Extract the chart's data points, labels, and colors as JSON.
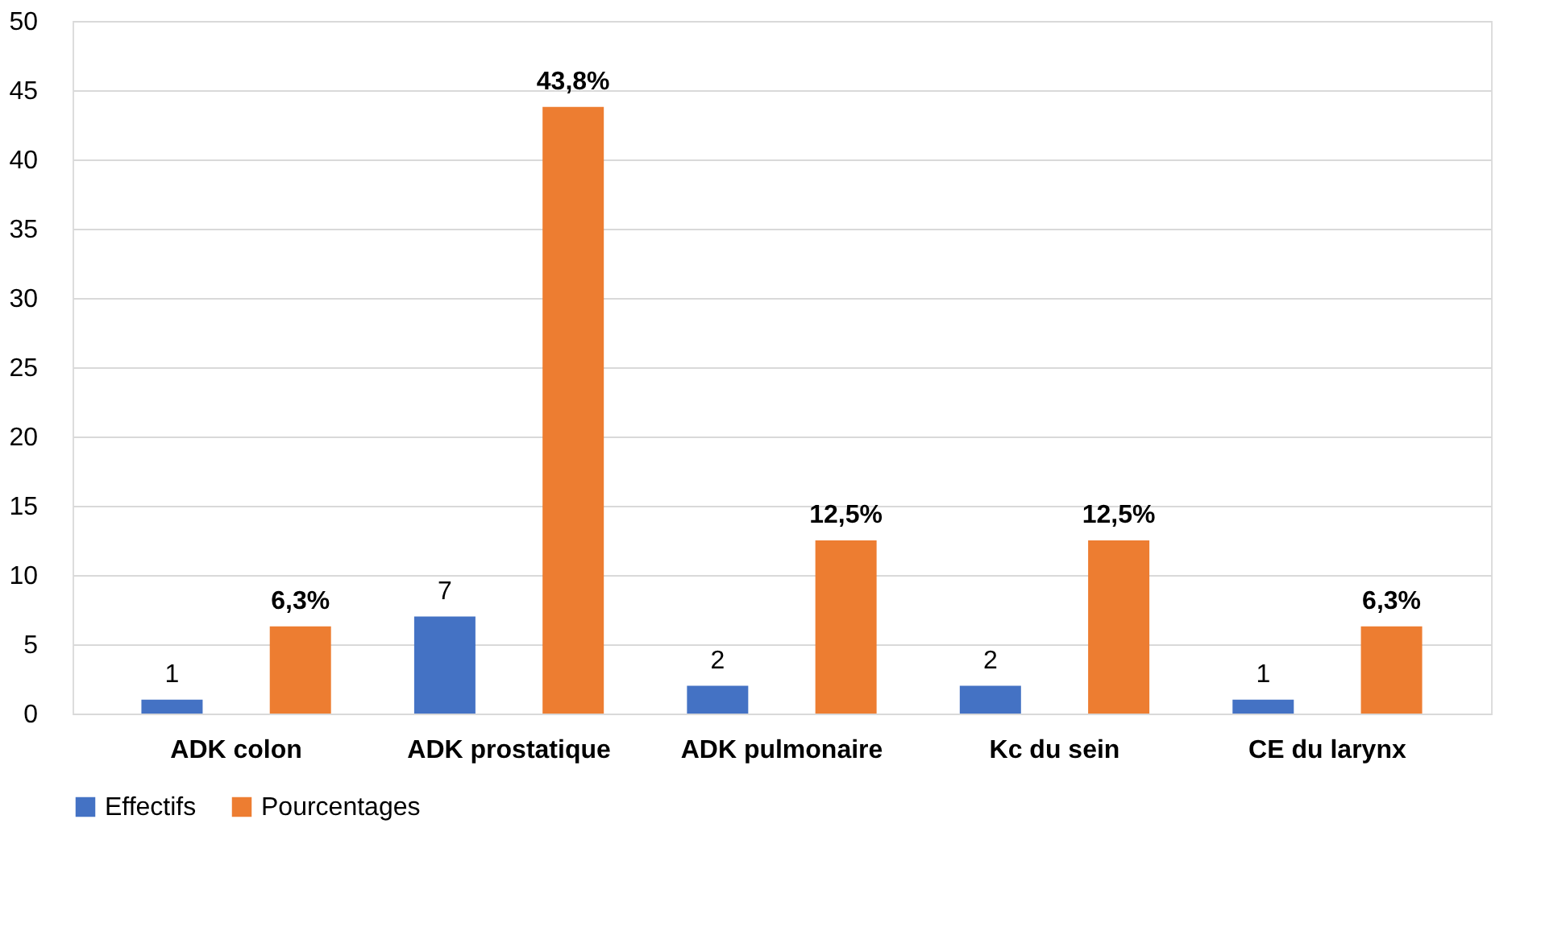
{
  "chart_data": {
    "type": "bar",
    "categories": [
      "ADK colon",
      "ADK prostatique",
      "ADK pulmonaire",
      "Kc du sein",
      "CE du larynx"
    ],
    "series": [
      {
        "name": "Effectifs",
        "color": "#4472c4",
        "values": [
          1,
          7,
          2,
          2,
          1
        ],
        "value_labels": [
          "1",
          "7",
          "2",
          "2",
          "1"
        ]
      },
      {
        "name": "Pourcentages",
        "color": "#ed7d31",
        "values": [
          6.3,
          43.8,
          12.5,
          12.5,
          6.3
        ],
        "value_labels": [
          "6,3%",
          "43,8%",
          "12,5%",
          "12,5%",
          "6,3%"
        ]
      }
    ],
    "ylim": [
      0,
      50
    ],
    "yticks": [
      0,
      5,
      10,
      15,
      20,
      25,
      30,
      35,
      40,
      45,
      50
    ],
    "grid": "y",
    "legend": "bottom"
  }
}
